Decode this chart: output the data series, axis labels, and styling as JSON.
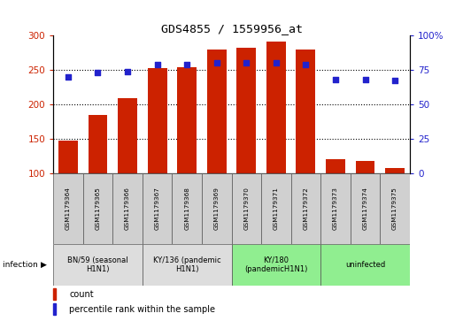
{
  "title": "GDS4855 / 1559956_at",
  "samples": [
    "GSM1179364",
    "GSM1179365",
    "GSM1179366",
    "GSM1179367",
    "GSM1179368",
    "GSM1179369",
    "GSM1179370",
    "GSM1179371",
    "GSM1179372",
    "GSM1179373",
    "GSM1179374",
    "GSM1179375"
  ],
  "counts": [
    148,
    184,
    209,
    253,
    254,
    280,
    282,
    291,
    279,
    121,
    118,
    108
  ],
  "percentile_ranks": [
    70,
    73,
    74,
    79,
    79,
    80,
    80,
    80,
    79,
    68,
    68,
    67
  ],
  "bar_color": "#cc2200",
  "dot_color": "#2222cc",
  "bar_baseline": 100,
  "left_ylim": [
    100,
    300
  ],
  "left_yticks": [
    100,
    150,
    200,
    250,
    300
  ],
  "right_ylim": [
    0,
    100
  ],
  "right_yticks": [
    0,
    25,
    50,
    75,
    100
  ],
  "right_yticklabels": [
    "0",
    "25",
    "50",
    "75",
    "100%"
  ],
  "gridlines_at": [
    150,
    200,
    250
  ],
  "groups": [
    {
      "label": "BN/59 (seasonal\nH1N1)",
      "start": 0,
      "end": 3,
      "color": "#dddddd"
    },
    {
      "label": "KY/136 (pandemic\nH1N1)",
      "start": 3,
      "end": 6,
      "color": "#dddddd"
    },
    {
      "label": "KY/180\n(pandemicH1N1)",
      "start": 6,
      "end": 9,
      "color": "#90ee90"
    },
    {
      "label": "uninfected",
      "start": 9,
      "end": 12,
      "color": "#90ee90"
    }
  ],
  "sample_box_color": "#d0d0d0",
  "legend_count_label": "count",
  "legend_pct_label": "percentile rank within the sample"
}
